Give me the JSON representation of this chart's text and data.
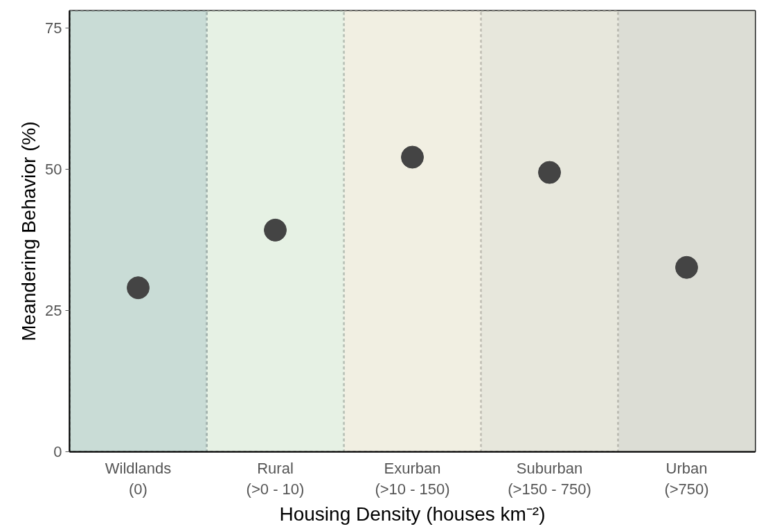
{
  "chart_data": {
    "type": "scatter",
    "xlabel": "Housing Density (houses km⁻²)",
    "ylabel": "Meandering Behavior (%)",
    "categories": [
      "Wildlands\n(0)",
      "Rural\n(>0 - 10)",
      "Exurban\n(>10 - 150)",
      "Suburban\n(>150 - 750)",
      "Urban\n(>750)"
    ],
    "series": [
      {
        "color": "#444444",
        "values": [
          29.0,
          39.2,
          52.1,
          49.4,
          32.6
        ]
      }
    ],
    "marker": "circle",
    "ylim": [
      0,
      78
    ],
    "yticks": [
      0,
      25,
      50,
      75
    ],
    "grid": false,
    "bands": [
      {
        "axis": "x",
        "from": "Wildlands\n(0)",
        "to": "Wildlands\n(0)",
        "color": "#c9dcd6"
      },
      {
        "axis": "x",
        "from": "Rural\n(>0 - 10)",
        "to": "Rural\n(>0 - 10)",
        "color": "#e6f1e4"
      },
      {
        "axis": "x",
        "from": "Exurban\n(>10 - 150)",
        "to": "Exurban\n(>10 - 150)",
        "color": "#f1efe2"
      },
      {
        "axis": "x",
        "from": "Suburban\n(>150 - 750)",
        "to": "Suburban\n(>150 - 750)",
        "color": "#e7e7dc"
      },
      {
        "axis": "x",
        "from": "Urban\n(>750)",
        "to": "Urban\n(>750)",
        "color": "#dcddd5"
      }
    ]
  }
}
